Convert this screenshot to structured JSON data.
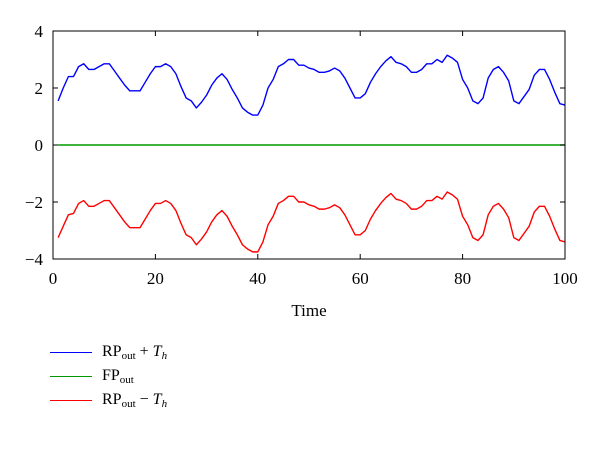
{
  "chart_data": {
    "type": "line",
    "xlabel": "Time",
    "ylabel": "",
    "xlim": [
      0,
      100
    ],
    "ylim": [
      -4,
      4
    ],
    "xticks": [
      0,
      20,
      40,
      60,
      80,
      100
    ],
    "yticks": [
      -4,
      -2,
      0,
      2,
      4
    ],
    "x": [
      1,
      2,
      3,
      4,
      5,
      6,
      7,
      8,
      9,
      10,
      11,
      12,
      13,
      14,
      15,
      16,
      17,
      18,
      19,
      20,
      21,
      22,
      23,
      24,
      25,
      26,
      27,
      28,
      29,
      30,
      31,
      32,
      33,
      34,
      35,
      36,
      37,
      38,
      39,
      40,
      41,
      42,
      43,
      44,
      45,
      46,
      47,
      48,
      49,
      50,
      51,
      52,
      53,
      54,
      55,
      56,
      57,
      58,
      59,
      60,
      61,
      62,
      63,
      64,
      65,
      66,
      67,
      68,
      69,
      70,
      71,
      72,
      73,
      74,
      75,
      76,
      77,
      78,
      79,
      80,
      81,
      82,
      83,
      84,
      85,
      86,
      87,
      88,
      89,
      90,
      91,
      92,
      93,
      94,
      95,
      96,
      97,
      98,
      99,
      100
    ],
    "series": [
      {
        "name": "RP_out + T_h",
        "color": "#0000ff",
        "values": [
          1.55,
          2.0,
          2.4,
          2.4,
          2.75,
          2.85,
          2.65,
          2.65,
          2.75,
          2.85,
          2.85,
          2.6,
          2.35,
          2.1,
          1.9,
          1.9,
          1.9,
          2.2,
          2.5,
          2.75,
          2.75,
          2.85,
          2.75,
          2.5,
          2.05,
          1.65,
          1.55,
          1.3,
          1.5,
          1.75,
          2.1,
          2.35,
          2.5,
          2.3,
          1.95,
          1.65,
          1.3,
          1.15,
          1.05,
          1.05,
          1.4,
          2.0,
          2.3,
          2.75,
          2.85,
          3.0,
          3.0,
          2.8,
          2.8,
          2.7,
          2.65,
          2.55,
          2.55,
          2.6,
          2.7,
          2.6,
          2.35,
          2.0,
          1.65,
          1.65,
          1.8,
          2.2,
          2.5,
          2.75,
          2.95,
          3.1,
          2.9,
          2.85,
          2.75,
          2.55,
          2.55,
          2.65,
          2.85,
          2.85,
          3.0,
          2.9,
          3.15,
          3.05,
          2.9,
          2.3,
          2.0,
          1.55,
          1.45,
          1.65,
          2.35,
          2.65,
          2.75,
          2.55,
          2.25,
          1.55,
          1.45,
          1.7,
          1.95,
          2.45,
          2.65,
          2.65,
          2.3,
          1.85,
          1.45,
          1.4
        ]
      },
      {
        "name": "FP_out",
        "color": "#009900",
        "values": [
          0,
          0,
          0,
          0,
          0,
          0,
          0,
          0,
          0,
          0,
          0,
          0,
          0,
          0,
          0,
          0,
          0,
          0,
          0,
          0,
          0,
          0,
          0,
          0,
          0,
          0,
          0,
          0,
          0,
          0,
          0,
          0,
          0,
          0,
          0,
          0,
          0,
          0,
          0,
          0,
          0,
          0,
          0,
          0,
          0,
          0,
          0,
          0,
          0,
          0,
          0,
          0,
          0,
          0,
          0,
          0,
          0,
          0,
          0,
          0,
          0,
          0,
          0,
          0,
          0,
          0,
          0,
          0,
          0,
          0,
          0,
          0,
          0,
          0,
          0,
          0,
          0,
          0,
          0,
          0,
          0,
          0,
          0,
          0,
          0,
          0,
          0,
          0,
          0,
          0,
          0,
          0,
          0,
          0,
          0,
          0,
          0,
          0,
          0,
          0
        ]
      },
      {
        "name": "RP_out − T_h",
        "color": "#ff0000",
        "values": [
          -3.25,
          -2.85,
          -2.45,
          -2.4,
          -2.05,
          -1.95,
          -2.15,
          -2.15,
          -2.05,
          -1.95,
          -1.95,
          -2.2,
          -2.45,
          -2.7,
          -2.9,
          -2.9,
          -2.9,
          -2.6,
          -2.3,
          -2.05,
          -2.05,
          -1.95,
          -2.05,
          -2.3,
          -2.75,
          -3.15,
          -3.25,
          -3.5,
          -3.3,
          -3.05,
          -2.7,
          -2.45,
          -2.3,
          -2.5,
          -2.85,
          -3.15,
          -3.5,
          -3.65,
          -3.75,
          -3.75,
          -3.4,
          -2.8,
          -2.5,
          -2.05,
          -1.95,
          -1.8,
          -1.8,
          -2.0,
          -2.0,
          -2.1,
          -2.15,
          -2.25,
          -2.25,
          -2.2,
          -2.1,
          -2.2,
          -2.45,
          -2.8,
          -3.15,
          -3.15,
          -3.0,
          -2.6,
          -2.3,
          -2.05,
          -1.85,
          -1.7,
          -1.9,
          -1.95,
          -2.05,
          -2.25,
          -2.25,
          -2.15,
          -1.95,
          -1.95,
          -1.8,
          -1.9,
          -1.65,
          -1.75,
          -1.9,
          -2.5,
          -2.8,
          -3.25,
          -3.35,
          -3.15,
          -2.45,
          -2.15,
          -2.05,
          -2.25,
          -2.55,
          -3.25,
          -3.35,
          -3.1,
          -2.85,
          -2.35,
          -2.15,
          -2.15,
          -2.5,
          -2.95,
          -3.35,
          -3.4
        ]
      }
    ]
  },
  "legend": {
    "items": [
      {
        "base": "RP",
        "sub": "out",
        "op": " + ",
        "var": "T",
        "varsub": "h",
        "color": "#0000ff"
      },
      {
        "base": "FP",
        "sub": "out",
        "op": "",
        "var": "",
        "varsub": "",
        "color": "#009900"
      },
      {
        "base": "RP",
        "sub": "out",
        "op": " − ",
        "var": "T",
        "varsub": "h",
        "color": "#ff0000"
      }
    ]
  }
}
